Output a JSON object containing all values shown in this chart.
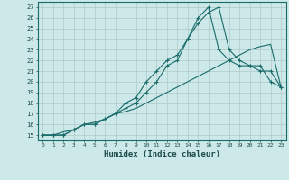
{
  "xlabel": "Humidex (Indice chaleur)",
  "bg_color": "#cce8e8",
  "grid_color": "#b0c8c8",
  "line_color": "#1a6b6b",
  "xlim": [
    -0.5,
    23.5
  ],
  "ylim": [
    14.5,
    27.5
  ],
  "xticks": [
    0,
    1,
    2,
    3,
    4,
    5,
    6,
    7,
    8,
    9,
    10,
    11,
    12,
    13,
    14,
    15,
    16,
    17,
    18,
    19,
    20,
    21,
    22,
    23
  ],
  "yticks": [
    15,
    16,
    17,
    18,
    19,
    20,
    21,
    22,
    23,
    24,
    25,
    26,
    27
  ],
  "line1_x": [
    0,
    1,
    2,
    3,
    4,
    5,
    6,
    7,
    8,
    9,
    10,
    11,
    12,
    13,
    14,
    15,
    16,
    17,
    18,
    19,
    20,
    21,
    22,
    23
  ],
  "line1_y": [
    15,
    15,
    15,
    15.5,
    16,
    16,
    16.5,
    17,
    17.5,
    18,
    19,
    20,
    21.5,
    22,
    24,
    25.5,
    26.5,
    27,
    23,
    22,
    21.5,
    21,
    21,
    19.5
  ],
  "line2_x": [
    0,
    1,
    2,
    3,
    4,
    5,
    6,
    7,
    8,
    9,
    10,
    11,
    12,
    13,
    14,
    15,
    16,
    17,
    18,
    19,
    20,
    21,
    22,
    23
  ],
  "line2_y": [
    15,
    15,
    15,
    15.5,
    16,
    16,
    16.5,
    17,
    18,
    18.5,
    20,
    21,
    22,
    22.5,
    24,
    26,
    27,
    23,
    22,
    21.5,
    21.5,
    21.5,
    20,
    19.5
  ],
  "line3_x": [
    0,
    1,
    2,
    3,
    4,
    5,
    6,
    7,
    8,
    9,
    10,
    11,
    12,
    13,
    14,
    15,
    16,
    17,
    18,
    19,
    20,
    21,
    22,
    23
  ],
  "line3_y": [
    15,
    15,
    15.3,
    15.5,
    16,
    16.2,
    16.5,
    17,
    17.2,
    17.5,
    18,
    18.5,
    19,
    19.5,
    20,
    20.5,
    21,
    21.5,
    22,
    22.5,
    23,
    23.3,
    23.5,
    19.5
  ]
}
